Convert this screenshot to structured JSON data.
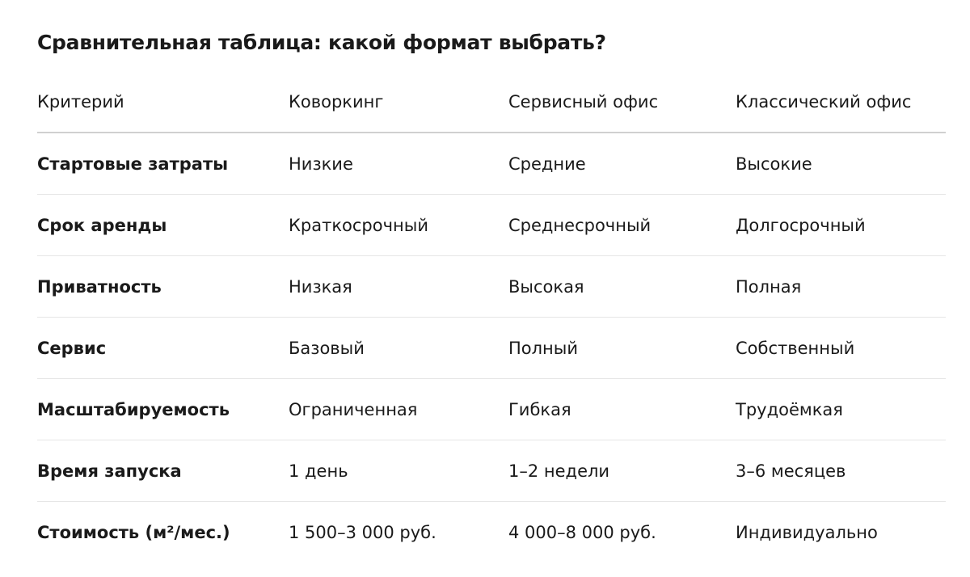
{
  "title": "Сравнительная таблица: какой формат выбрать?",
  "table": {
    "header": [
      "Критерий",
      "Коворкинг",
      "Сервисный офис",
      "Классический офис"
    ],
    "rows": [
      [
        "Стартовые затраты",
        "Низкие",
        "Средние",
        "Высокие"
      ],
      [
        "Срок аренды",
        "Краткосрочный",
        "Среднесрочный",
        "Долгосрочный"
      ],
      [
        "Приватность",
        "Низкая",
        "Высокая",
        "Полная"
      ],
      [
        "Сервис",
        "Базовый",
        "Полный",
        "Собственный"
      ],
      [
        "Масштабируемость",
        "Ограниченная",
        "Гибкая",
        "Трудоёмкая"
      ],
      [
        "Время запуска",
        "1 день",
        "1–2 недели",
        "3–6 месяцев"
      ],
      [
        "Стоимость (м²/мес.)",
        "1 500–3 000 руб.",
        "4 000–8 000 руб.",
        "Индивидуально"
      ]
    ]
  }
}
